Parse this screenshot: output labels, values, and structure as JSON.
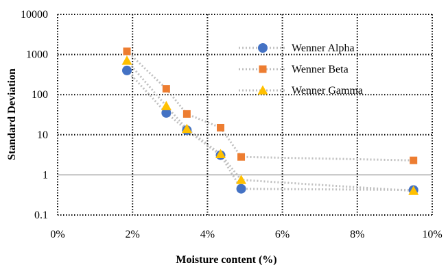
{
  "chart_data": {
    "type": "scatter",
    "title": "",
    "xlabel": "Moisture content (%)",
    "ylabel": "Standard Deviation",
    "xlim": [
      0,
      10
    ],
    "ylim": [
      0.1,
      10000
    ],
    "yscale": "log",
    "x_ticks": [
      {
        "value": 0,
        "label": "0%"
      },
      {
        "value": 2,
        "label": "2%"
      },
      {
        "value": 4,
        "label": "4%"
      },
      {
        "value": 6,
        "label": "6%"
      },
      {
        "value": 8,
        "label": "8%"
      },
      {
        "value": 10,
        "label": "10%"
      }
    ],
    "y_ticks": [
      {
        "value": 0.1,
        "label": "0.1"
      },
      {
        "value": 1,
        "label": "1"
      },
      {
        "value": 10,
        "label": "10"
      },
      {
        "value": 100,
        "label": "100"
      },
      {
        "value": 1000,
        "label": "1000"
      },
      {
        "value": 10000,
        "label": "10000"
      }
    ],
    "grid": true,
    "legend_position": "top-right",
    "series": [
      {
        "name": "Wenner Alpha",
        "marker": "circle",
        "color": "#4472C4",
        "x": [
          1.85,
          2.9,
          3.45,
          4.35,
          4.9,
          9.5
        ],
        "y": [
          400,
          35,
          13,
          3.1,
          0.45,
          0.42
        ]
      },
      {
        "name": "Wenner Beta",
        "marker": "square",
        "color": "#ED7D31",
        "x": [
          1.85,
          2.9,
          3.45,
          4.35,
          4.9,
          9.5
        ],
        "y": [
          1200,
          140,
          33,
          15,
          2.8,
          2.3
        ]
      },
      {
        "name": "Wenner Gamma",
        "marker": "triangle",
        "color": "#FFC000",
        "x": [
          1.85,
          2.9,
          3.45,
          4.35,
          4.9,
          9.5
        ],
        "y": [
          700,
          52,
          14,
          3.3,
          0.75,
          0.4
        ]
      }
    ]
  }
}
